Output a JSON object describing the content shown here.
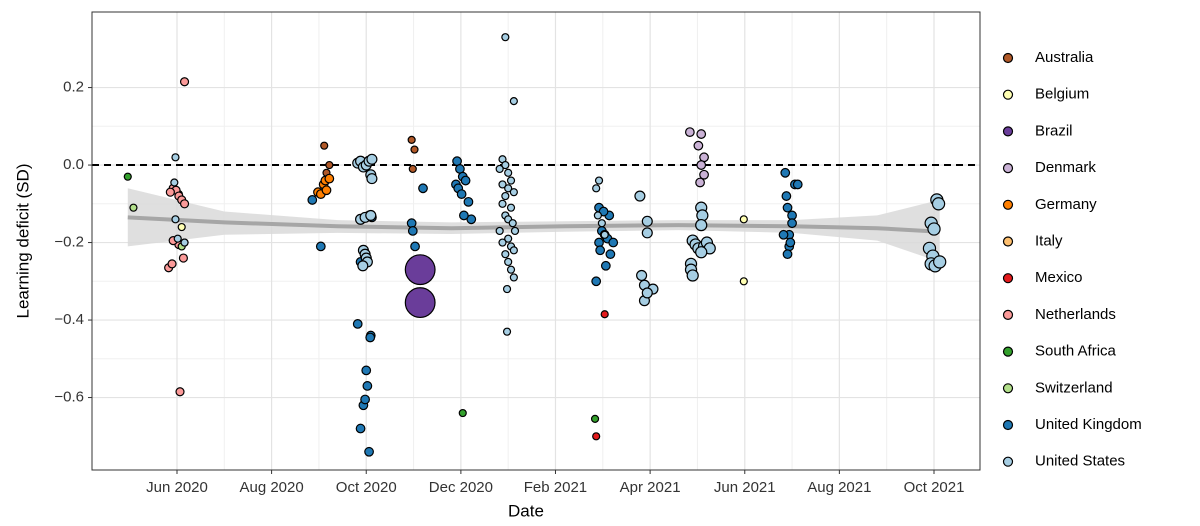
{
  "chart_data": {
    "type": "scatter",
    "x_label": "Date",
    "y_label": "Learning deficit (SD)",
    "xlim": [
      2020.267,
      2021.831
    ],
    "ylim": [
      -0.787,
      0.395
    ],
    "xticks": [
      {
        "value": 2020.4167,
        "label": "Jun 2020"
      },
      {
        "value": 2020.5833,
        "label": "Aug 2020"
      },
      {
        "value": 2020.75,
        "label": "Oct 2020"
      },
      {
        "value": 2020.9167,
        "label": "Dec 2020"
      },
      {
        "value": 2021.0833,
        "label": "Feb 2021"
      },
      {
        "value": 2021.25,
        "label": "Apr 2021"
      },
      {
        "value": 2021.4167,
        "label": "Jun 2021"
      },
      {
        "value": 2021.5833,
        "label": "Aug 2021"
      },
      {
        "value": 2021.75,
        "label": "Oct 2021"
      }
    ],
    "yticks": [
      {
        "value": -0.6,
        "label": "−0.6"
      },
      {
        "value": -0.4,
        "label": "−0.4"
      },
      {
        "value": -0.2,
        "label": "−0.2"
      },
      {
        "value": 0,
        "label": "0.0"
      },
      0.2
    ],
    "grid": true,
    "hline": 0,
    "legend": "right",
    "trend": {
      "color": "#a6a6a6",
      "band_color": "#d9d9d9",
      "x": [
        2020.33,
        2020.5,
        2020.7,
        2020.9,
        2021.1,
        2021.3,
        2021.5,
        2021.65,
        2021.76
      ],
      "y": [
        -0.135,
        -0.148,
        -0.158,
        -0.163,
        -0.158,
        -0.155,
        -0.158,
        -0.163,
        -0.172
      ],
      "lower": [
        -0.21,
        -0.18,
        -0.175,
        -0.178,
        -0.172,
        -0.168,
        -0.175,
        -0.195,
        -0.25
      ],
      "upper": [
        -0.06,
        -0.12,
        -0.142,
        -0.148,
        -0.145,
        -0.142,
        -0.142,
        -0.13,
        -0.09
      ]
    },
    "series": [
      {
        "name": "Australia",
        "color": "#b15928",
        "size": 1,
        "x": [
          2020.676,
          2020.68,
          2020.685,
          2020.83,
          2020.835,
          2020.832
        ],
        "y": [
          0.05,
          -0.02,
          0.0,
          0.065,
          0.04,
          -0.01
        ]
      },
      {
        "name": "Belgium",
        "color": "#ffffb3",
        "size": 1,
        "x": [
          2020.425,
          2021.415,
          2021.415
        ],
        "y": [
          -0.16,
          -0.14,
          -0.3
        ]
      },
      {
        "name": "Brazil",
        "color": "#6a3d9a",
        "size": 18,
        "x": [
          2020.845,
          2020.845
        ],
        "y": [
          -0.27,
          -0.355
        ]
      },
      {
        "name": "Denmark",
        "color": "#cab2d6",
        "size": 1.5,
        "x": [
          2021.32,
          2021.34,
          2021.335,
          2021.345,
          2021.34,
          2021.345,
          2021.338
        ],
        "y": [
          0.085,
          0.08,
          0.05,
          0.02,
          0.0,
          -0.025,
          -0.045
        ]
      },
      {
        "name": "Germany",
        "color": "#ff7f00",
        "size": 1.5,
        "x": [
          2020.665,
          2020.67,
          2020.675,
          2020.68,
          2020.678,
          2020.685
        ],
        "y": [
          -0.07,
          -0.075,
          -0.05,
          -0.065,
          -0.04,
          -0.035
        ]
      },
      {
        "name": "Italy",
        "color": "#fdbf6f",
        "size": 1,
        "x": [
          2020.42
        ],
        "y": [
          -0.075
        ]
      },
      {
        "name": "Mexico",
        "color": "#e31a1c",
        "size": 1,
        "x": [
          2021.17,
          2021.155
        ],
        "y": [
          -0.385,
          -0.7
        ]
      },
      {
        "name": "Netherlands",
        "color": "#fb9a99",
        "size": 1.3,
        "x": [
          2020.41,
          2020.415,
          2020.42,
          2020.425,
          2020.405,
          2020.43,
          2020.42,
          2020.41,
          2020.402,
          2020.408,
          2020.428,
          2020.43,
          2020.422
        ],
        "y": [
          -0.06,
          -0.065,
          -0.08,
          -0.09,
          -0.07,
          -0.1,
          -0.205,
          -0.195,
          -0.265,
          -0.255,
          -0.24,
          0.215,
          -0.585
        ]
      },
      {
        "name": "South Africa",
        "color": "#33a02c",
        "size": 1,
        "x": [
          2020.33,
          2020.92,
          2021.153
        ],
        "y": [
          -0.03,
          -0.64,
          -0.655
        ]
      },
      {
        "name": "Switzerland",
        "color": "#b2df8a",
        "size": 1,
        "x": [
          2020.34,
          2020.43,
          2020.425
        ],
        "y": [
          -0.11,
          -0.2,
          -0.21
        ]
      },
      {
        "name": "United Kingdom",
        "color": "#1f78b4",
        "size": 1.5,
        "x": [
          2020.735,
          2020.74,
          2020.75,
          2020.752,
          2020.745,
          2020.748,
          2020.755,
          2020.758,
          2020.757,
          2020.745,
          2020.74,
          2020.755,
          2020.76,
          2020.67,
          2020.655,
          2020.83,
          2020.832,
          2020.836,
          2020.85,
          2020.91,
          2020.915,
          2020.92,
          2020.908,
          2020.912,
          2020.918,
          2020.925,
          2020.93,
          2020.935,
          2020.922,
          2021.155,
          2021.16,
          2021.165,
          2021.17,
          2021.16,
          2021.175,
          2021.18,
          2021.172,
          2021.178,
          2021.168,
          2021.162,
          2021.185,
          2021.488,
          2021.49,
          2021.492,
          2021.5,
          2021.5,
          2021.505,
          2021.51,
          2021.495,
          2021.485,
          2021.495,
          2021.492,
          2021.497
        ],
        "y": [
          -0.41,
          -0.68,
          -0.53,
          -0.57,
          -0.62,
          -0.605,
          -0.74,
          -0.44,
          -0.445,
          -0.255,
          -0.25,
          -0.13,
          -0.135,
          -0.21,
          -0.09,
          -0.15,
          -0.17,
          -0.21,
          -0.06,
          0.01,
          -0.01,
          -0.03,
          -0.05,
          -0.06,
          -0.075,
          -0.04,
          -0.095,
          -0.14,
          -0.13,
          -0.3,
          -0.11,
          -0.17,
          -0.18,
          -0.2,
          -0.19,
          -0.23,
          -0.26,
          -0.13,
          -0.12,
          -0.22,
          -0.2,
          -0.02,
          -0.08,
          -0.11,
          -0.13,
          -0.15,
          -0.05,
          -0.05,
          -0.18,
          -0.18,
          -0.21,
          -0.23,
          -0.2
        ]
      },
      {
        "name": "United States",
        "color": "#a6cee3",
        "x": [
          2020.414,
          2020.412,
          2020.414,
          2020.418,
          2020.43,
          2020.735,
          2020.74,
          2020.745,
          2020.75,
          2020.755,
          2020.76,
          2020.758,
          2020.76,
          2020.74,
          2020.748,
          2020.745,
          2020.748,
          2020.75,
          2020.752,
          2020.744,
          2020.758,
          2020.995,
          2021.01,
          2020.99,
          2020.995,
          2020.985,
          2021.0,
          2021.005,
          2020.99,
          2021.0,
          2021.01,
          2020.995,
          2020.99,
          2021.005,
          2020.995,
          2021.0,
          2021.008,
          2021.012,
          2020.985,
          2021.0,
          2020.99,
          2021.005,
          2021.01,
          2020.995,
          2021.0,
          2021.005,
          2021.01,
          2020.998,
          2020.998,
          2021.16,
          2021.155,
          2021.158,
          2021.165,
          2021.17,
          2021.232,
          2021.245,
          2021.245,
          2021.235,
          2021.24,
          2021.255,
          2021.24,
          2021.245,
          2021.34,
          2021.342,
          2021.325,
          2021.33,
          2021.335,
          2021.345,
          2021.35,
          2021.355,
          2021.34,
          2021.322,
          2021.322,
          2021.325,
          2021.34,
          2021.755,
          2021.758,
          2021.745,
          2021.75,
          2021.742,
          2021.748,
          2021.745,
          2021.752,
          2021.76
        ],
        "y": [
          0.02,
          -0.045,
          -0.14,
          -0.19,
          -0.2,
          0.005,
          0.01,
          -0.005,
          0.0,
          0.01,
          0.015,
          -0.025,
          -0.035,
          -0.14,
          -0.135,
          -0.22,
          -0.23,
          -0.24,
          -0.25,
          -0.26,
          -0.13,
          0.33,
          0.165,
          0.015,
          0.0,
          -0.01,
          -0.02,
          -0.04,
          -0.05,
          -0.06,
          -0.07,
          -0.08,
          -0.1,
          -0.11,
          -0.13,
          -0.14,
          -0.15,
          -0.17,
          -0.17,
          -0.19,
          -0.2,
          -0.21,
          -0.22,
          -0.23,
          -0.25,
          -0.27,
          -0.29,
          -0.32,
          -0.43,
          -0.04,
          -0.06,
          -0.13,
          -0.15,
          -0.18,
          -0.08,
          -0.145,
          -0.175,
          -0.285,
          -0.31,
          -0.32,
          -0.35,
          -0.33,
          -0.11,
          -0.13,
          -0.195,
          -0.205,
          -0.215,
          -0.21,
          -0.2,
          -0.215,
          -0.225,
          -0.255,
          -0.27,
          -0.285,
          -0.155,
          -0.09,
          -0.1,
          -0.15,
          -0.165,
          -0.215,
          -0.235,
          -0.255,
          -0.26,
          -0.25
        ],
        "sizes": [
          1,
          1,
          1,
          1,
          1,
          2,
          2,
          2,
          2,
          2,
          2,
          2,
          2,
          2,
          2,
          2,
          2,
          2,
          2,
          2,
          2,
          1,
          1,
          1,
          1,
          1,
          1,
          1,
          1,
          1,
          1,
          1,
          1,
          1,
          1,
          1,
          1,
          1,
          1,
          1,
          1,
          1,
          1,
          1,
          1,
          1,
          1,
          1,
          1,
          1,
          1,
          1,
          1,
          1,
          2,
          2,
          2,
          2,
          2,
          2,
          2,
          2,
          2.5,
          2.5,
          2.5,
          2.5,
          2.5,
          2.5,
          2.5,
          2.5,
          2.5,
          2.5,
          2.5,
          2.5,
          2.5,
          3,
          3,
          3,
          3,
          3,
          3,
          3,
          3,
          3
        ]
      }
    ]
  }
}
